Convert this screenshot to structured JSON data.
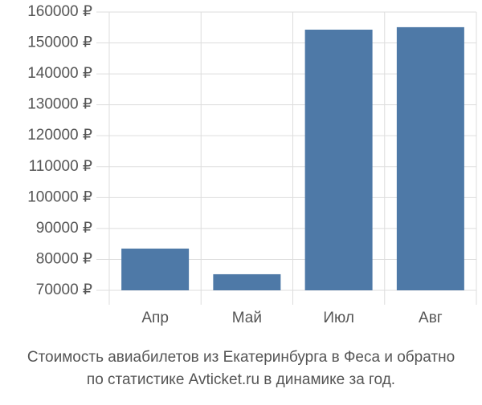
{
  "chart_data": {
    "type": "bar",
    "title_lines": [
      "Стоимость авиабилетов из Екатеринбурга в Феса и обратно",
      "по статистике Avticket.ru в динамике за год."
    ],
    "categories": [
      "Апр",
      "Май",
      "Июл",
      "Авг"
    ],
    "values": [
      83500,
      75200,
      154300,
      155100
    ],
    "color": "#4e79a7",
    "ylim": [
      70000,
      160000
    ],
    "yticks": [
      {
        "value": 70000,
        "label": "70000 ₽"
      },
      {
        "value": 80000,
        "label": "80000 ₽"
      },
      {
        "value": 90000,
        "label": "90000 ₽"
      },
      {
        "value": 100000,
        "label": "100000 ₽"
      },
      {
        "value": 110000,
        "label": "110000 ₽"
      },
      {
        "value": 120000,
        "label": "120000 ₽"
      },
      {
        "value": 130000,
        "label": "130000 ₽"
      },
      {
        "value": 140000,
        "label": "140000 ₽"
      },
      {
        "value": 150000,
        "label": "150000 ₽"
      },
      {
        "value": 160000,
        "label": "160000 ₽"
      }
    ],
    "grid": true
  }
}
